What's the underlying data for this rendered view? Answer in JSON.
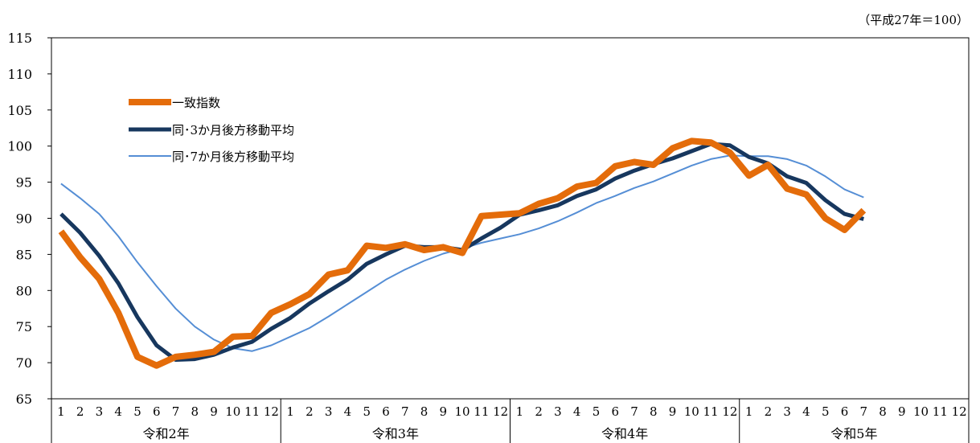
{
  "unit_note": "（平成27年＝100）",
  "chart_data": {
    "type": "line",
    "ylim": [
      65,
      115
    ],
    "y_ticks": [
      65,
      70,
      75,
      80,
      85,
      90,
      95,
      100,
      105,
      110,
      115
    ],
    "months": [
      "1",
      "2",
      "3",
      "4",
      "5",
      "6",
      "7",
      "8",
      "9",
      "10",
      "11",
      "12"
    ],
    "year_groups": [
      "令和2年",
      "令和3年",
      "令和4年",
      "令和5年"
    ],
    "legend_position": "top-left",
    "grid": false,
    "series": [
      {
        "name": "一致指数",
        "color": "#E46C0A",
        "values": [
          88.2,
          84.6,
          81.6,
          76.9,
          70.8,
          69.6,
          70.8,
          71.1,
          71.5,
          73.6,
          73.7,
          76.9,
          78.1,
          79.5,
          82.2,
          82.8,
          86.2,
          85.9,
          86.4,
          85.6,
          86.0,
          85.2,
          90.3,
          90.5,
          90.7,
          92.0,
          92.8,
          94.4,
          94.9,
          97.2,
          97.8,
          97.4,
          99.7,
          100.7,
          100.5,
          99.1,
          95.9,
          97.4,
          94.1,
          93.3,
          90.0,
          88.4,
          91.1
        ]
      },
      {
        "name": "同･3か月後方移動平均",
        "color": "#17375E",
        "values": [
          90.6,
          88.0,
          84.8,
          81.0,
          76.3,
          72.4,
          70.4,
          70.5,
          71.1,
          72.1,
          72.9,
          74.7,
          76.2,
          78.2,
          79.9,
          81.5,
          83.7,
          85.0,
          86.2,
          86.0,
          86.0,
          85.6,
          87.2,
          88.7,
          90.5,
          91.1,
          91.8,
          93.1,
          94.0,
          95.5,
          96.6,
          97.5,
          98.3,
          99.3,
          100.3,
          100.1,
          98.5,
          97.6,
          95.8,
          94.9,
          92.5,
          90.6,
          89.9
        ]
      },
      {
        "name": "同･7か月後方移動平均",
        "color": "#558ED5",
        "values": [
          94.8,
          92.8,
          90.6,
          87.5,
          83.9,
          80.6,
          77.5,
          75.0,
          73.2,
          72.0,
          71.6,
          72.4,
          73.6,
          74.8,
          76.4,
          78.1,
          79.8,
          81.5,
          82.9,
          84.1,
          85.1,
          85.8,
          86.6,
          87.2,
          87.8,
          88.6,
          89.6,
          90.8,
          92.1,
          93.1,
          94.2,
          95.1,
          96.2,
          97.3,
          98.2,
          98.7,
          98.6,
          98.6,
          98.2,
          97.3,
          95.8,
          94.0,
          92.9
        ]
      }
    ]
  }
}
